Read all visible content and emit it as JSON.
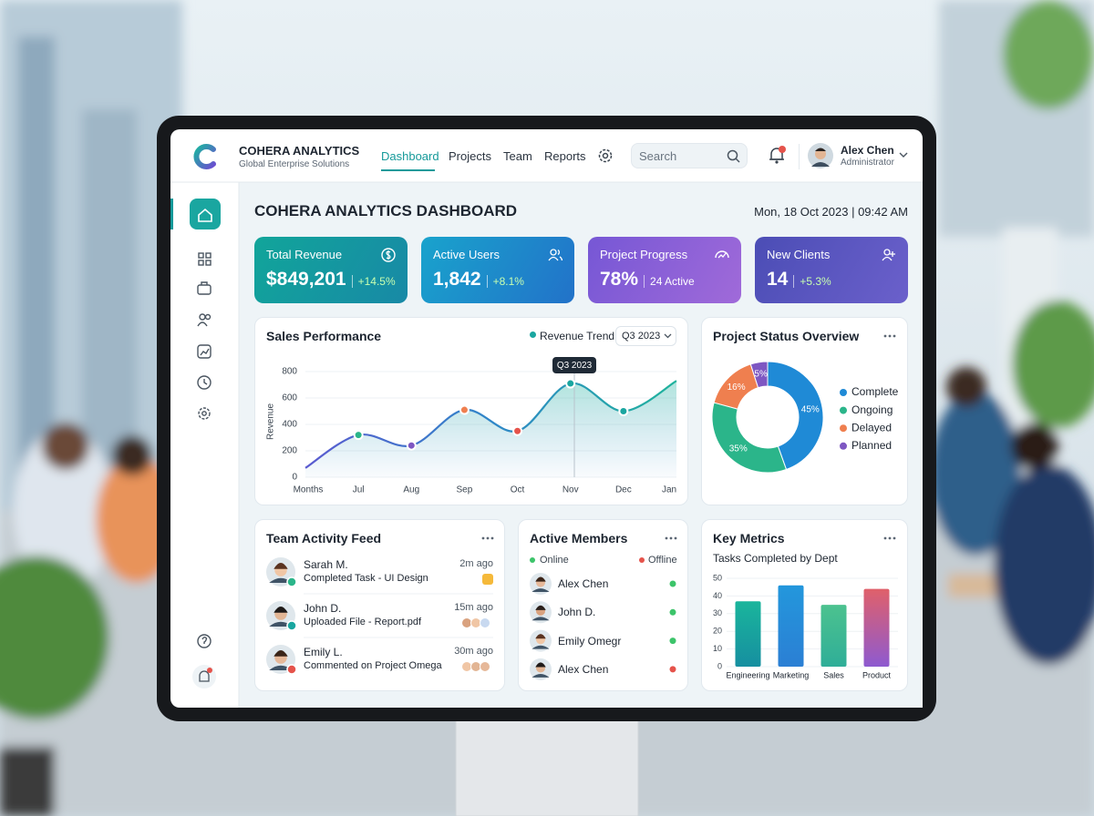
{
  "header": {
    "brand": "COHERA ANALYTICS",
    "tagline": "Global Enterprise Solutions",
    "nav": [
      "Dashboard",
      "Projects",
      "Team",
      "Reports"
    ],
    "search_placeholder": "Search",
    "user": {
      "name": "Alex Chen",
      "role": "Administrator"
    }
  },
  "dashboard": {
    "title": "COHERA ANALYTICS DASHBOARD",
    "datetime": "Mon, 18 Oct 2023 | 09:42 AM"
  },
  "kpis": [
    {
      "label": "Total Revenue",
      "value": "$849,201",
      "change": "+14.5%"
    },
    {
      "label": "Active Users",
      "value": "1,842",
      "change": "+8.1%"
    },
    {
      "label": "Project Progress",
      "value": "78%",
      "change": "24 Active"
    },
    {
      "label": "New Clients",
      "value": "14",
      "change": "+5.3%"
    }
  ],
  "sales_chart": {
    "type": "line",
    "title": "Sales Performance",
    "legend": "Revenue Trend",
    "period": "Q3 2023",
    "tooltip": "Q3 2023",
    "x_label": "Months",
    "y_label": "Revenue",
    "categories": [
      null,
      "Jul",
      "Aug",
      "Sep",
      "Oct",
      "Nov",
      "Dec",
      "Jan"
    ],
    "values": [
      70,
      320,
      240,
      510,
      350,
      710,
      500,
      730
    ],
    "marker_colors": [
      null,
      "#2bb58a",
      "#7e57c2",
      "#ef7f4f",
      "#e5534b",
      "#1aa6a0",
      "#1aa6a0",
      null
    ],
    "color": "#2f86c8",
    "ylim": [
      0,
      800
    ],
    "yticks": [
      0,
      200,
      400,
      600,
      800
    ],
    "grid": true
  },
  "project_status": {
    "type": "pie",
    "title": "Project Status Overview",
    "categories": [
      "Complete",
      "Ongoing",
      "Delayed",
      "Planned"
    ],
    "values": [
      45,
      35,
      16,
      5
    ],
    "value_labels": [
      "45%",
      "35%",
      "16%",
      "5%"
    ],
    "colors": [
      "#1f8ad6",
      "#2bb58a",
      "#ef7f4f",
      "#7e57c2"
    ]
  },
  "team_activity": {
    "title": "Team Activity Feed",
    "items": [
      {
        "name": "Sarah M.",
        "action": "Completed Task - UI Design",
        "time": "2m ago"
      },
      {
        "name": "John D.",
        "action": "Uploaded File - Report.pdf",
        "time": "15m ago"
      },
      {
        "name": "Emily L.",
        "action": "Commented on Project Omega",
        "time": "30m ago"
      }
    ]
  },
  "active_members": {
    "title": "Active Members",
    "online_label": "Online",
    "offline_label": "Offline",
    "members": [
      {
        "name": "Alex Chen",
        "status": "online"
      },
      {
        "name": "John D.",
        "status": "online"
      },
      {
        "name": "Emily Omegr",
        "status": "online"
      },
      {
        "name": "Alex Chen",
        "status": "offline"
      }
    ]
  },
  "key_metrics": {
    "type": "bar",
    "title": "Key Metrics",
    "subtitle": "Tasks Completed by Dept",
    "categories": [
      "Engineering",
      "Marketing",
      "Sales",
      "Product"
    ],
    "values": [
      37,
      46,
      35,
      44
    ],
    "colors": [
      "#168fa0",
      "#2b7fd4",
      "#2fae98",
      "#8e5ad0"
    ],
    "top_colors": [
      "#1ab59c",
      "#2397dc",
      "#4cc28f",
      "#e0606a"
    ],
    "ylim": [
      0,
      50
    ],
    "yticks": [
      0,
      10,
      20,
      30,
      40,
      50
    ],
    "grid": true
  }
}
